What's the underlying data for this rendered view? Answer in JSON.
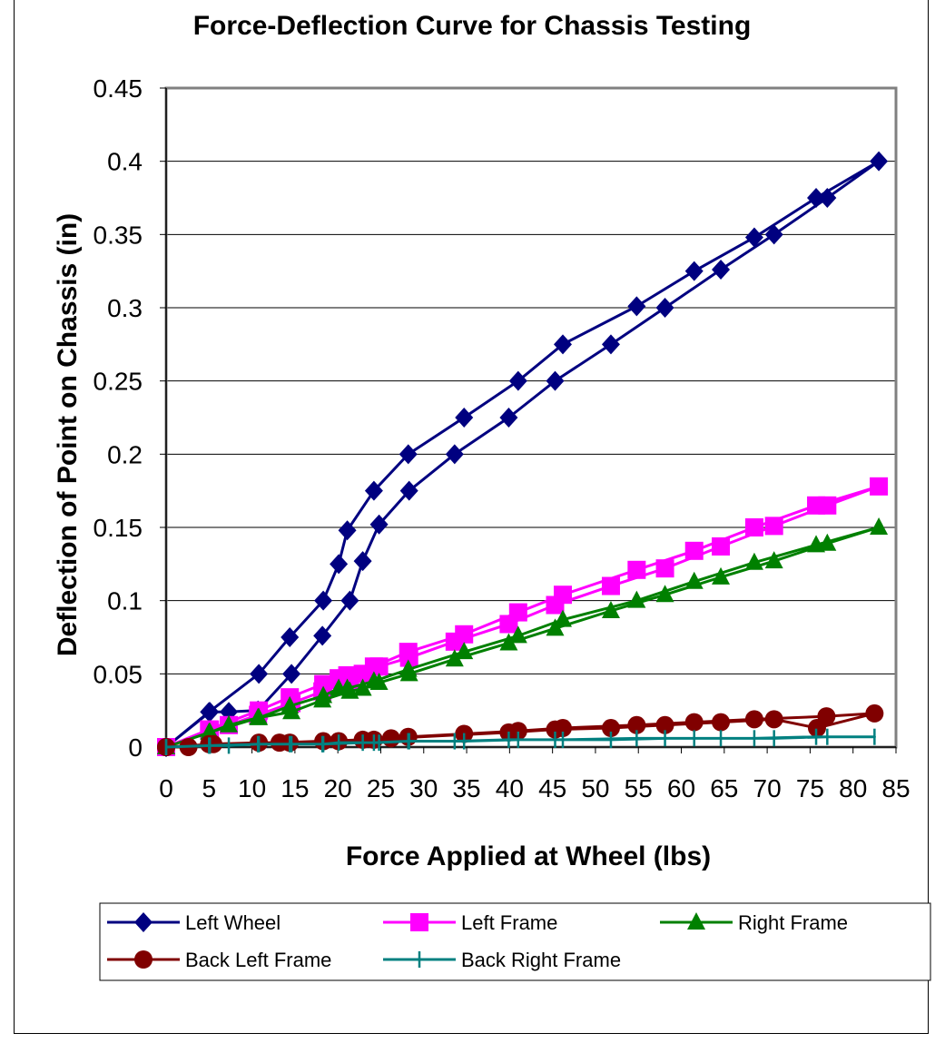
{
  "chart_data": {
    "type": "line",
    "title": "Force-Deflection Curve for Chassis Testing",
    "xlabel": "Force Applied at Wheel (lbs)",
    "ylabel": "Deflection of Point on Chassis (in)",
    "xlim": [
      0,
      85
    ],
    "ylim": [
      0,
      0.45
    ],
    "x_ticks": [
      "0",
      "5",
      "10",
      "15",
      "20",
      "25",
      "30",
      "35",
      "40",
      "45",
      "50",
      "55",
      "60",
      "65",
      "70",
      "75",
      "80",
      "85"
    ],
    "y_ticks": [
      "0",
      "0.05",
      "0.1",
      "0.15",
      "0.2",
      "0.25",
      "0.3",
      "0.35",
      "0.4",
      "0.45"
    ],
    "grid": "horizontal",
    "legend_position": "bottom",
    "series": [
      {
        "name": "Left Wheel",
        "color": "#000080",
        "marker": "diamond",
        "x": [
          0,
          5,
          10.8,
          14.4,
          18.3,
          20.1,
          21.1,
          24.2,
          28.2,
          34.7,
          41,
          46.2,
          54.8,
          61.5,
          68.5,
          75.7,
          83,
          77,
          70.8,
          64.6,
          58.1,
          51.8,
          45.3,
          39.9,
          33.6,
          28.3,
          24.8,
          22.9,
          21.4,
          18.2,
          14.6,
          10.7,
          7.3,
          5.1,
          0
        ],
        "y": [
          0,
          0.024,
          0.05,
          0.075,
          0.1,
          0.125,
          0.148,
          0.175,
          0.2,
          0.225,
          0.25,
          0.275,
          0.301,
          0.325,
          0.348,
          0.375,
          0.4,
          0.375,
          0.35,
          0.326,
          0.3,
          0.275,
          0.25,
          0.225,
          0.2,
          0.175,
          0.152,
          0.127,
          0.1,
          0.076,
          0.05,
          0.025,
          0.024,
          0.024,
          0
        ]
      },
      {
        "name": "Left Frame",
        "color": "#FF00FF",
        "marker": "square",
        "x": [
          0,
          5,
          10.8,
          14.4,
          18.3,
          20.1,
          21.1,
          24.2,
          28.2,
          34.7,
          41,
          46.2,
          54.8,
          61.5,
          68.5,
          75.7,
          83,
          77,
          70.8,
          64.6,
          58.1,
          51.8,
          45.3,
          39.9,
          33.6,
          28.3,
          24.8,
          22.9,
          21.4,
          18.2,
          14.6,
          10.7,
          7.3,
          5.1,
          0
        ],
        "y": [
          0,
          0.012,
          0.025,
          0.034,
          0.043,
          0.047,
          0.049,
          0.055,
          0.065,
          0.077,
          0.092,
          0.104,
          0.121,
          0.134,
          0.15,
          0.165,
          0.178,
          0.165,
          0.151,
          0.137,
          0.122,
          0.11,
          0.097,
          0.084,
          0.072,
          0.061,
          0.055,
          0.05,
          0.045,
          0.038,
          0.03,
          0.022,
          0.015,
          0.012,
          0
        ]
      },
      {
        "name": "Right Frame",
        "color": "#008000",
        "marker": "triangle",
        "x": [
          0,
          5,
          10.8,
          14.4,
          18.3,
          20.1,
          21.1,
          24.2,
          28.2,
          34.7,
          41,
          46.2,
          54.8,
          61.5,
          68.5,
          75.7,
          83,
          77,
          70.8,
          64.6,
          58.1,
          51.8,
          45.3,
          39.9,
          33.6,
          28.3,
          24.8,
          22.9,
          21.4,
          18.2,
          14.6,
          10.7,
          7.3,
          5.1,
          0
        ],
        "y": [
          0,
          0.01,
          0.02,
          0.028,
          0.035,
          0.04,
          0.04,
          0.045,
          0.053,
          0.065,
          0.076,
          0.087,
          0.1,
          0.113,
          0.126,
          0.138,
          0.15,
          0.139,
          0.127,
          0.116,
          0.104,
          0.093,
          0.081,
          0.071,
          0.06,
          0.05,
          0.044,
          0.04,
          0.038,
          0.032,
          0.024,
          0.02,
          0.015,
          0.01,
          0
        ]
      },
      {
        "name": "Back Left Frame",
        "color": "#800000",
        "marker": "circle",
        "x": [
          0,
          2.6,
          5,
          10.8,
          14.4,
          18.3,
          20.1,
          24.2,
          28.2,
          34.7,
          41,
          46.2,
          54.8,
          61.5,
          68.5,
          76.9,
          82.5,
          75.8,
          70.8,
          64.6,
          58.1,
          51.8,
          45.3,
          39.9,
          26.2,
          22.9,
          13.2,
          5.5,
          0
        ],
        "y": [
          0,
          0,
          0.002,
          0.003,
          0.003,
          0.004,
          0.004,
          0.005,
          0.007,
          0.009,
          0.011,
          0.013,
          0.015,
          0.017,
          0.019,
          0.021,
          0.023,
          0.013,
          0.019,
          0.017,
          0.015,
          0.013,
          0.012,
          0.01,
          0.006,
          0.005,
          0.003,
          0.002,
          0
        ]
      },
      {
        "name": "Back Right Frame",
        "color": "#008080",
        "marker": "plus",
        "x": [
          0,
          5,
          10.8,
          14.4,
          18.3,
          20.1,
          24.2,
          28.2,
          34.7,
          41,
          46.2,
          54.8,
          61.5,
          68.5,
          75.7,
          82.5,
          77,
          70.8,
          64.6,
          58.1,
          51.8,
          45.3,
          39.9,
          33.6,
          28.3,
          24.8,
          22.9,
          18.2,
          14.6,
          10.7,
          7.3,
          5.1,
          0
        ],
        "y": [
          0,
          0.001,
          0.002,
          0.002,
          0.002,
          0.003,
          0.003,
          0.004,
          0.004,
          0.005,
          0.005,
          0.006,
          0.006,
          0.006,
          0.007,
          0.007,
          0.007,
          0.006,
          0.006,
          0.006,
          0.005,
          0.005,
          0.005,
          0.004,
          0.004,
          0.003,
          0.003,
          0.002,
          0.002,
          0.002,
          0.001,
          0.001,
          0
        ]
      }
    ]
  }
}
